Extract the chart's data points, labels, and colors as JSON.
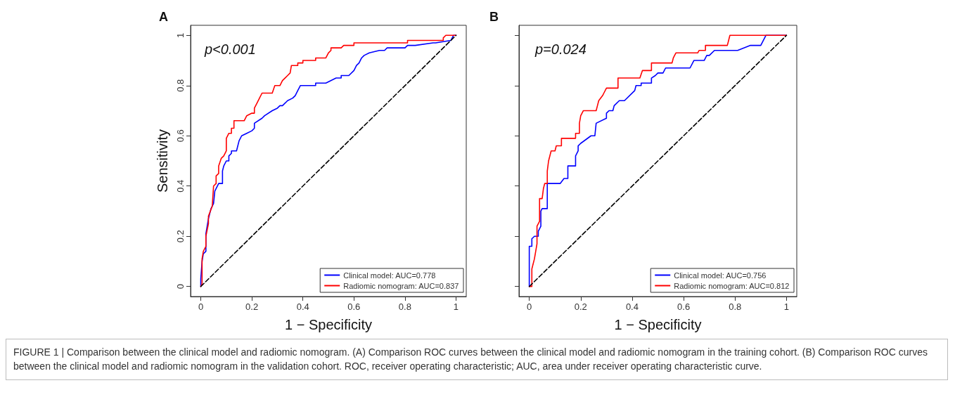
{
  "chart_data": [
    {
      "type": "line",
      "title": "A",
      "xlabel": "1 − Specificity",
      "ylabel": "Sensitivity",
      "annotations": [
        "p<0.001",
        "FIGURE 1 | Comparison between the clinical model and radiomic nomogram. (A) Comparison ROC curves between the clinical model and radiomic nomogram in the training cohort. (B) Comparison ROC curves between the clinical model and radiomic nomogram in the validation cohort. ROC, receiver operating characteristic; AUC, area under receiver operating characteristic curve."
      ],
      "xlim": [
        -0.04,
        1.04
      ],
      "ylim": [
        -0.04,
        1.04
      ],
      "xticks": [
        0,
        0.2,
        0.4,
        0.6,
        0.8,
        1
      ],
      "yticks": [
        0,
        0.2,
        0.4,
        0.6,
        0.8,
        1
      ],
      "grid": false,
      "legend": "bottom right",
      "marker": "none",
      "series": [
        {
          "name": "Clinical model: AUC=0.778",
          "color": "#0000ff",
          "line_style": "solid",
          "x": [
            0,
            0,
            0.005,
            0.01,
            0.02,
            0.02,
            0.03,
            0.04,
            0.05,
            0.055,
            0.06,
            0.07,
            0.085,
            0.085,
            0.09,
            0.1,
            0.11,
            0.11,
            0.12,
            0.12,
            0.14,
            0.15,
            0.16,
            0.18,
            0.2,
            0.21,
            0.21,
            0.24,
            0.25,
            0.28,
            0.3,
            0.31,
            0.32,
            0.34,
            0.36,
            0.37,
            0.38,
            0.39,
            0.45,
            0.45,
            0.49,
            0.53,
            0.55,
            0.55,
            0.58,
            0.6,
            0.61,
            0.62,
            0.63,
            0.64,
            0.66,
            0.7,
            0.72,
            0.73,
            0.8,
            0.81,
            0.84,
            0.91,
            0.92,
            0.98,
            0.99,
            1
          ],
          "values": [
            0,
            0.03,
            0.1,
            0.13,
            0.14,
            0.21,
            0.27,
            0.31,
            0.33,
            0.38,
            0.39,
            0.41,
            0.41,
            0.46,
            0.48,
            0.5,
            0.5,
            0.52,
            0.53,
            0.54,
            0.54,
            0.58,
            0.6,
            0.61,
            0.62,
            0.63,
            0.65,
            0.67,
            0.68,
            0.7,
            0.71,
            0.72,
            0.72,
            0.74,
            0.75,
            0.76,
            0.78,
            0.8,
            0.8,
            0.81,
            0.81,
            0.83,
            0.83,
            0.84,
            0.84,
            0.86,
            0.88,
            0.89,
            0.91,
            0.92,
            0.93,
            0.94,
            0.94,
            0.95,
            0.95,
            0.96,
            0.96,
            0.97,
            0.97,
            0.98,
            1,
            1
          ]
        },
        {
          "name": "Radiomic nomogram: AUC=0.837",
          "color": "#ff0000",
          "line_style": "solid",
          "x": [
            0,
            0.005,
            0.005,
            0.01,
            0.02,
            0.02,
            0.03,
            0.03,
            0.045,
            0.05,
            0.06,
            0.06,
            0.07,
            0.07,
            0.08,
            0.09,
            0.1,
            0.1,
            0.11,
            0.12,
            0.12,
            0.13,
            0.13,
            0.17,
            0.18,
            0.2,
            0.21,
            0.21,
            0.22,
            0.23,
            0.24,
            0.28,
            0.29,
            0.31,
            0.32,
            0.33,
            0.34,
            0.35,
            0.355,
            0.38,
            0.38,
            0.4,
            0.4,
            0.45,
            0.45,
            0.49,
            0.5,
            0.51,
            0.51,
            0.55,
            0.56,
            0.6,
            0.6,
            0.81,
            0.81,
            0.95,
            0.95,
            0.96,
            1
          ],
          "values": [
            0,
            0.01,
            0.11,
            0.14,
            0.16,
            0.2,
            0.25,
            0.28,
            0.32,
            0.4,
            0.41,
            0.44,
            0.45,
            0.48,
            0.51,
            0.52,
            0.54,
            0.59,
            0.61,
            0.61,
            0.63,
            0.63,
            0.66,
            0.66,
            0.68,
            0.69,
            0.69,
            0.71,
            0.73,
            0.75,
            0.77,
            0.77,
            0.8,
            0.8,
            0.82,
            0.83,
            0.84,
            0.85,
            0.88,
            0.88,
            0.89,
            0.89,
            0.9,
            0.9,
            0.91,
            0.91,
            0.93,
            0.94,
            0.95,
            0.95,
            0.96,
            0.96,
            0.97,
            0.97,
            0.98,
            0.98,
            0.99,
            1,
            1
          ]
        },
        {
          "color": "#000000",
          "line_style": "dashed",
          "x": [
            0,
            1
          ],
          "values": [
            0,
            1
          ]
        }
      ]
    },
    {
      "type": "line",
      "title": "B",
      "xlabel": "1 − Specificity",
      "annotations": [
        "p=0.024"
      ],
      "xlim": [
        -0.04,
        1.04
      ],
      "ylim": [
        -0.04,
        1.04
      ],
      "xticks": [
        0,
        0.2,
        0.4,
        0.6,
        0.8,
        1
      ],
      "yticks": [
        0,
        0.2,
        0.4,
        0.6,
        0.8,
        1
      ],
      "tick_labels": "x",
      "grid": false,
      "legend": "bottom right",
      "marker": "none",
      "series": [
        {
          "name": "Clinical model: AUC=0.756",
          "color": "#0000ff",
          "line_style": "solid",
          "x": [
            0,
            0,
            0.01,
            0.01,
            0.02,
            0.035,
            0.035,
            0.045,
            0.045,
            0.05,
            0.07,
            0.07,
            0.12,
            0.135,
            0.15,
            0.15,
            0.18,
            0.18,
            0.19,
            0.19,
            0.2,
            0.24,
            0.255,
            0.26,
            0.3,
            0.3,
            0.31,
            0.325,
            0.33,
            0.35,
            0.37,
            0.41,
            0.415,
            0.435,
            0.435,
            0.475,
            0.475,
            0.49,
            0.5,
            0.52,
            0.53,
            0.625,
            0.64,
            0.68,
            0.69,
            0.7,
            0.72,
            0.81,
            0.86,
            0.9,
            0.92,
            1
          ],
          "values": [
            0,
            0.16,
            0.16,
            0.19,
            0.2,
            0.2,
            0.22,
            0.24,
            0.3,
            0.31,
            0.31,
            0.41,
            0.41,
            0.43,
            0.43,
            0.48,
            0.48,
            0.52,
            0.54,
            0.56,
            0.57,
            0.6,
            0.6,
            0.65,
            0.67,
            0.69,
            0.7,
            0.7,
            0.72,
            0.74,
            0.74,
            0.78,
            0.8,
            0.8,
            0.81,
            0.81,
            0.83,
            0.84,
            0.85,
            0.85,
            0.87,
            0.87,
            0.9,
            0.9,
            0.92,
            0.92,
            0.94,
            0.94,
            0.96,
            0.96,
            1,
            1
          ]
        },
        {
          "name": "Radiomic nomogram: AUC=0.812",
          "color": "#ff0000",
          "line_style": "solid",
          "x": [
            0,
            0.01,
            0.01,
            0.015,
            0.02,
            0.025,
            0.03,
            0.03,
            0.04,
            0.04,
            0.05,
            0.055,
            0.06,
            0.07,
            0.07,
            0.075,
            0.085,
            0.1,
            0.105,
            0.125,
            0.125,
            0.18,
            0.18,
            0.195,
            0.195,
            0.2,
            0.21,
            0.26,
            0.265,
            0.27,
            0.285,
            0.29,
            0.3,
            0.345,
            0.345,
            0.43,
            0.44,
            0.475,
            0.475,
            0.555,
            0.56,
            0.57,
            0.655,
            0.66,
            0.685,
            0.685,
            0.77,
            0.775,
            0.78,
            1
          ],
          "values": [
            0,
            0,
            0.07,
            0.09,
            0.11,
            0.14,
            0.17,
            0.24,
            0.26,
            0.35,
            0.35,
            0.39,
            0.41,
            0.41,
            0.46,
            0.5,
            0.54,
            0.54,
            0.56,
            0.56,
            0.59,
            0.59,
            0.61,
            0.61,
            0.65,
            0.68,
            0.7,
            0.7,
            0.72,
            0.74,
            0.76,
            0.77,
            0.79,
            0.79,
            0.83,
            0.83,
            0.86,
            0.86,
            0.89,
            0.89,
            0.91,
            0.93,
            0.93,
            0.94,
            0.94,
            0.96,
            0.96,
            0.98,
            1,
            1
          ]
        },
        {
          "color": "#000000",
          "line_style": "dashed",
          "x": [
            0,
            1
          ],
          "values": [
            0,
            1
          ]
        }
      ]
    }
  ]
}
